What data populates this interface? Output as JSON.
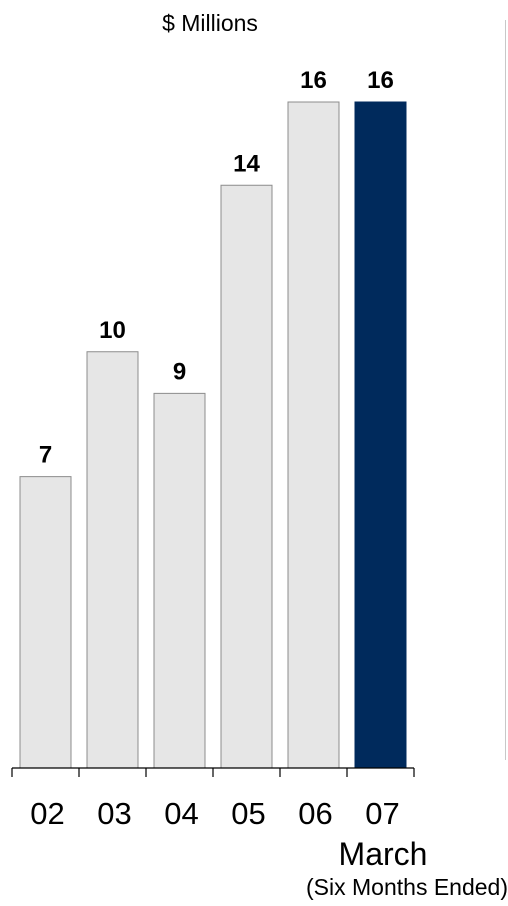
{
  "chart_data": {
    "type": "bar",
    "unit_label": "$ Millions",
    "categories": [
      "02",
      "03",
      "04",
      "05",
      "06",
      "07"
    ],
    "values": [
      7,
      10,
      9,
      14,
      16,
      16
    ],
    "highlight_index": 5,
    "ylim": [
      0,
      16
    ],
    "grid": false,
    "xlabel": "March",
    "xlabel_sub": "(Six Months Ended)",
    "colors": {
      "bar": "#e6e6e6",
      "bar_border": "#8c8c8c",
      "highlight": "#002a5c",
      "axis": "#000000"
    }
  }
}
